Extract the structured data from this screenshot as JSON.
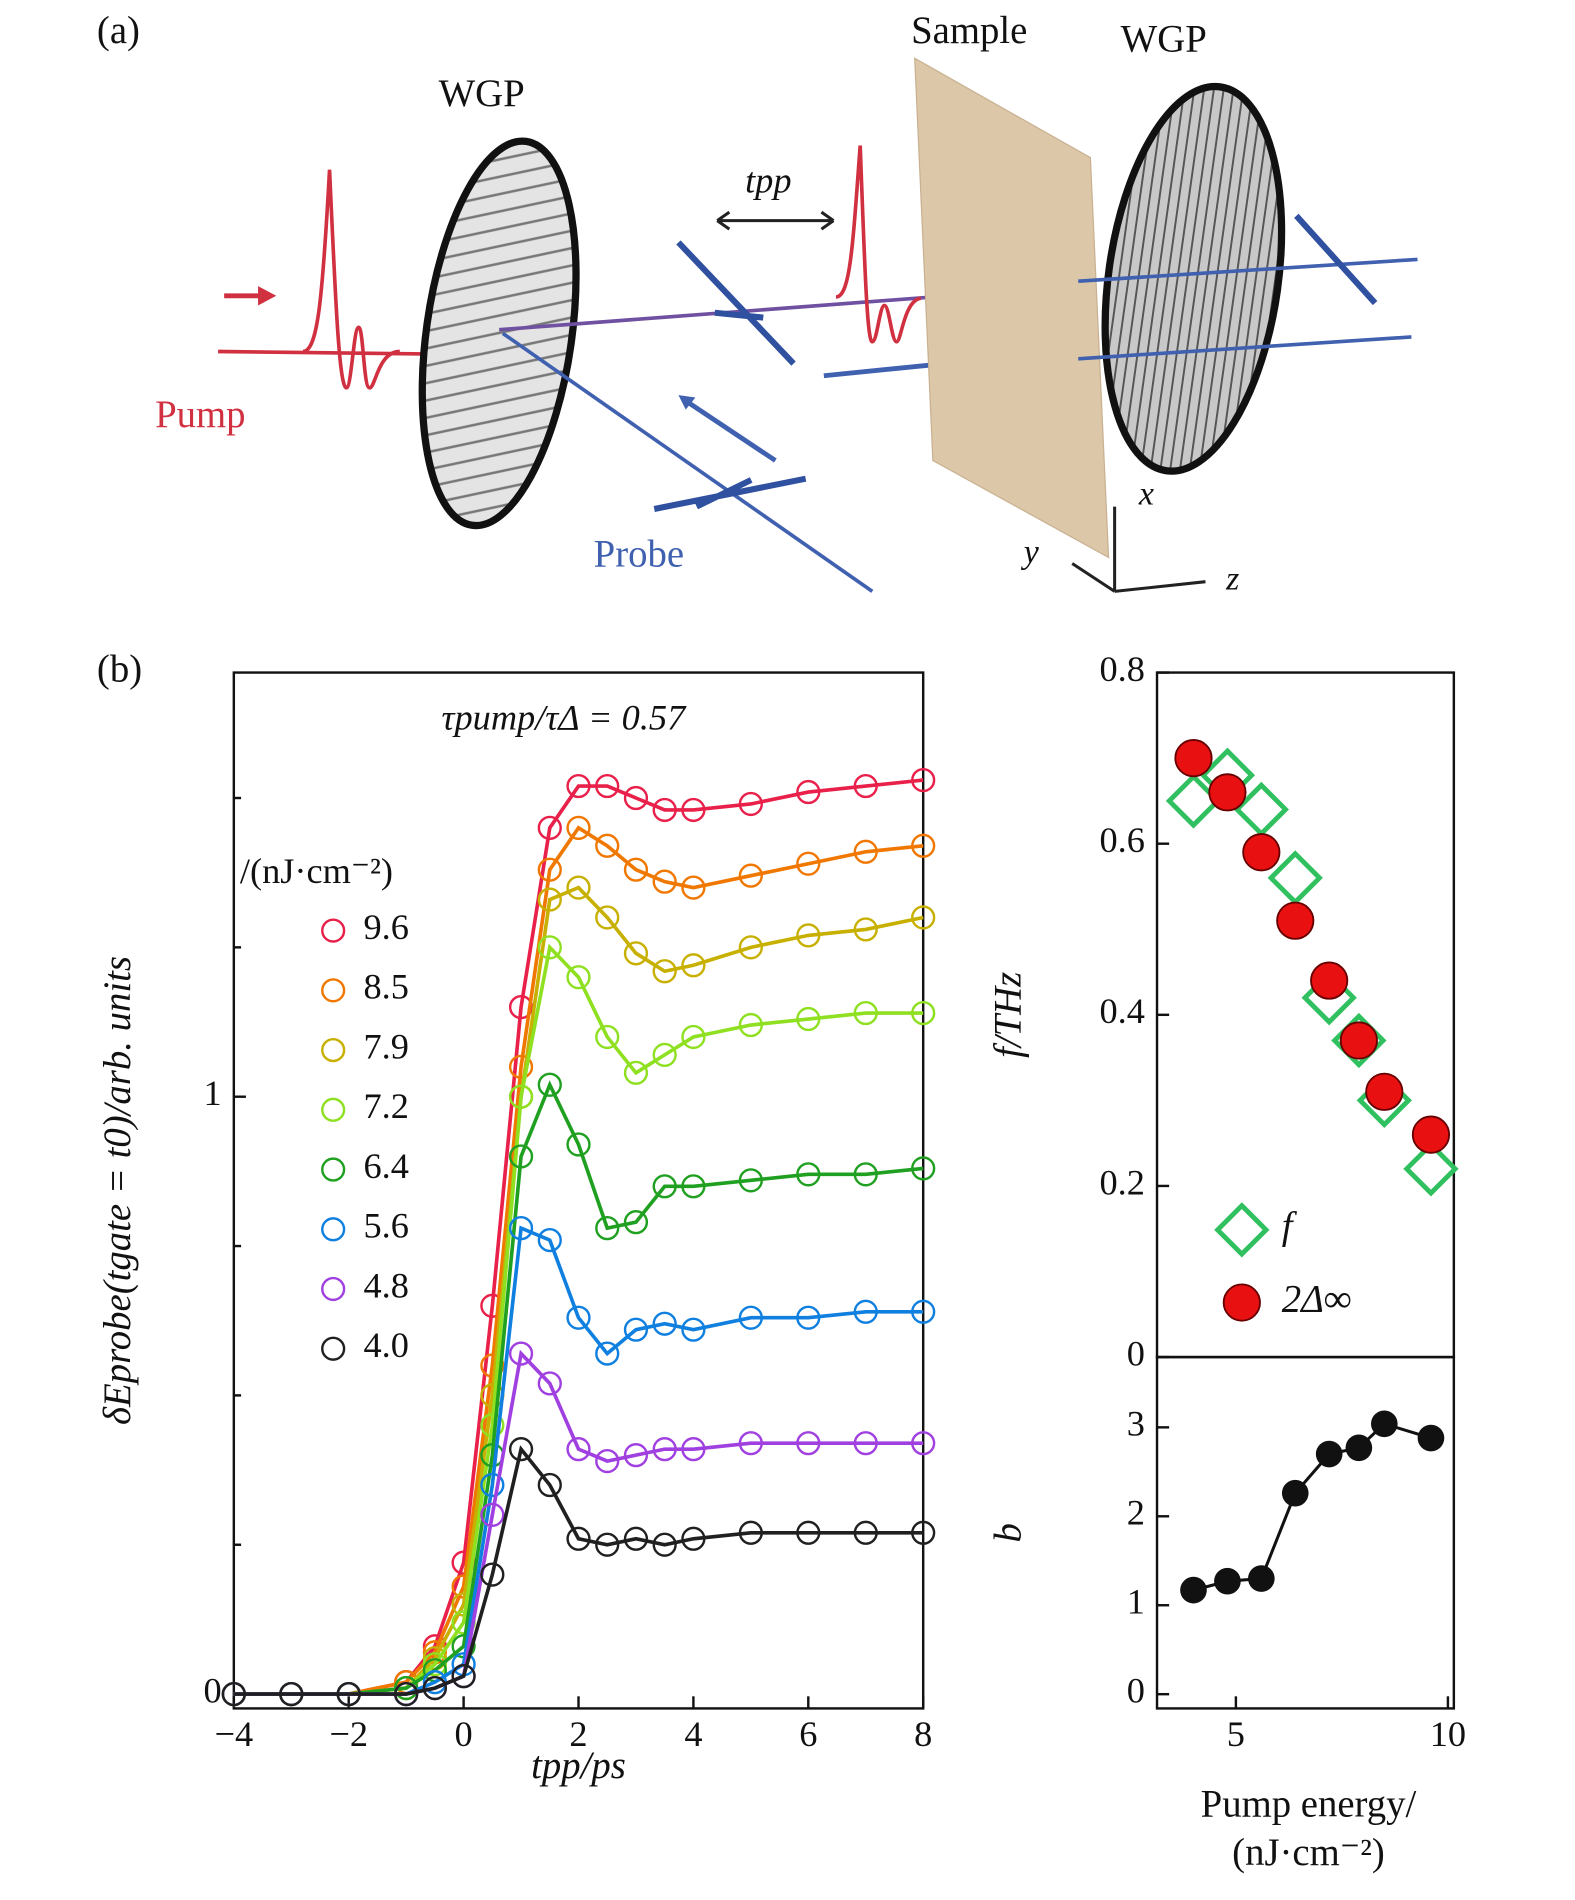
{
  "figure": {
    "panel_a": {
      "label": "(a)",
      "wgp_left": "WGP",
      "sample": "Sample",
      "wgp_right": "WGP",
      "delay": "tpp",
      "pump": "Pump",
      "probe": "Probe",
      "axis_x": "x",
      "axis_y": "y",
      "axis_z": "z"
    },
    "panel_b_label": "(b)"
  },
  "chart_data": [
    {
      "type": "line",
      "annotation": "τpump/τΔ = 0.57",
      "xlabel": "tpp/ps",
      "ylabel": "δEprobe(tgate = t0)/arb. units",
      "legend_title": "/(nJ·cm⁻²)",
      "xlim": [
        -4,
        8
      ],
      "ylim": [
        -0.024,
        1.71
      ],
      "xticks": [
        {
          "value": -4,
          "label": "−4"
        },
        {
          "value": -2,
          "label": "−2"
        },
        0,
        2,
        4,
        6,
        8
      ],
      "yticks": [
        0,
        1
      ],
      "minor_yticks": [
        0.25,
        0.5,
        0.75,
        1.25,
        1.5
      ],
      "x": [
        -4,
        -3,
        -2,
        -1,
        -0.5,
        0,
        0.5,
        1,
        1.5,
        2,
        2.5,
        3,
        3.5,
        4,
        5,
        6,
        7,
        8
      ],
      "series": [
        {
          "name": "9.6",
          "color": "#e8204a",
          "values": [
            0,
            0,
            0,
            0.02,
            0.08,
            0.22,
            0.65,
            1.15,
            1.45,
            1.52,
            1.52,
            1.5,
            1.48,
            1.48,
            1.49,
            1.51,
            1.52,
            1.53
          ]
        },
        {
          "name": "8.5",
          "color": "#f07800",
          "values": [
            0,
            0,
            0,
            0.02,
            0.07,
            0.18,
            0.55,
            1.05,
            1.38,
            1.45,
            1.42,
            1.38,
            1.36,
            1.35,
            1.37,
            1.39,
            1.41,
            1.42
          ]
        },
        {
          "name": "7.9",
          "color": "#c8b000",
          "values": [
            0,
            0,
            0,
            0.01,
            0.06,
            0.15,
            0.5,
            1.0,
            1.33,
            1.35,
            1.3,
            1.24,
            1.21,
            1.22,
            1.25,
            1.27,
            1.28,
            1.3
          ]
        },
        {
          "name": "7.2",
          "color": "#8ee020",
          "values": [
            0,
            0,
            0,
            0.01,
            0.05,
            0.12,
            0.45,
            1.0,
            1.25,
            1.2,
            1.1,
            1.04,
            1.07,
            1.1,
            1.12,
            1.13,
            1.14,
            1.14
          ]
        },
        {
          "name": "6.4",
          "color": "#20a020",
          "values": [
            0,
            0,
            0,
            0.01,
            0.04,
            0.08,
            0.4,
            0.9,
            1.02,
            0.92,
            0.78,
            0.79,
            0.85,
            0.85,
            0.86,
            0.87,
            0.87,
            0.88
          ]
        },
        {
          "name": "5.6",
          "color": "#1080e0",
          "values": [
            0,
            0,
            0,
            0,
            0.02,
            0.05,
            0.35,
            0.78,
            0.76,
            0.63,
            0.57,
            0.61,
            0.62,
            0.61,
            0.63,
            0.63,
            0.64,
            0.64
          ]
        },
        {
          "name": "4.8",
          "color": "#a040e0",
          "values": [
            0,
            0,
            0,
            0,
            0.01,
            0.03,
            0.3,
            0.57,
            0.52,
            0.41,
            0.39,
            0.4,
            0.41,
            0.41,
            0.42,
            0.42,
            0.42,
            0.42
          ]
        },
        {
          "name": "4.0",
          "color": "#202020",
          "values": [
            0,
            0,
            0,
            0,
            0.01,
            0.03,
            0.2,
            0.41,
            0.35,
            0.26,
            0.25,
            0.26,
            0.25,
            0.26,
            0.27,
            0.27,
            0.27,
            0.27
          ]
        }
      ]
    },
    {
      "type": "scatter",
      "ylabel": "f/THz",
      "xlim": [
        3.14,
        10.14
      ],
      "ylim": [
        0,
        0.8
      ],
      "yticks": [
        0,
        0.2,
        0.4,
        0.6,
        0.8
      ],
      "x": [
        4.0,
        4.8,
        5.6,
        6.4,
        7.2,
        7.9,
        8.5,
        9.6
      ],
      "series": [
        {
          "name": "f",
          "color": "#30c060",
          "marker": "diamond",
          "values": [
            0.65,
            0.68,
            0.64,
            0.56,
            0.42,
            0.37,
            0.3,
            0.22
          ]
        },
        {
          "name": "2Δ∞",
          "color": "#e81010",
          "marker": "circle",
          "values": [
            0.7,
            0.66,
            0.59,
            0.51,
            0.44,
            0.37,
            0.31,
            0.26
          ]
        }
      ]
    },
    {
      "type": "line",
      "ylabel": "b",
      "xlabel": [
        "Pump energy/",
        "(nJ·cm⁻²)"
      ],
      "xlim": [
        3.14,
        10.14
      ],
      "ylim": [
        -0.16,
        3.79
      ],
      "xticks": [
        5,
        10
      ],
      "yticks": [
        0,
        1,
        2,
        3
      ],
      "x": [
        4.0,
        4.8,
        5.6,
        6.4,
        7.2,
        7.9,
        8.5,
        9.6
      ],
      "color": "#111111",
      "values": [
        1.17,
        1.27,
        1.3,
        2.26,
        2.7,
        2.77,
        3.04,
        2.88
      ]
    }
  ]
}
